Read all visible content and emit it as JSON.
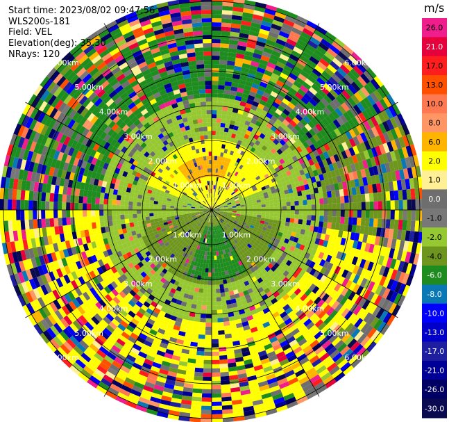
{
  "header": {
    "start_time": "Start time: 2023/08/02 09:47:56",
    "station": "WLS200s-181",
    "field": "Field: VEL",
    "elevation": "Elevation(deg): 35.30",
    "nrays": "NRays: 120"
  },
  "chart_data": {
    "type": "heatmap",
    "projection": "polar PPI",
    "field": "VEL",
    "units": "m/s",
    "n_rays": 120,
    "elevation_deg": 35.3,
    "range_rings_km": [
      1,
      2,
      3,
      4,
      5,
      6
    ],
    "range_ring_labels": [
      "1.00km",
      "2.00km",
      "3.00km",
      "4.00km",
      "5.00km",
      "6.00km"
    ],
    "max_range_km": 6.2,
    "colorbar": {
      "title": "m/s",
      "ticks": [
        "26.0",
        "21.0",
        "17.0",
        "13.0",
        "10.0",
        "8.0",
        "6.0",
        "2.0",
        "1.0",
        "0.0",
        "-1.0",
        "-2.0",
        "-4.0",
        "-6.0",
        "-8.0",
        "-10.0",
        "-13.0",
        "-17.0",
        "-21.0",
        "-26.0",
        "-30.0"
      ],
      "colors": [
        "#f01e8c",
        "#e6003c",
        "#ff1e1e",
        "#ff5000",
        "#ff7850",
        "#ff9664",
        "#ffb400",
        "#ffff00",
        "#fff096",
        "#6e6e6e",
        "#787878",
        "#96c832",
        "#6e961e",
        "#1e8c1e",
        "#0a78b4",
        "#0000ff",
        "#0000c8",
        "#1e1ea0",
        "#000096",
        "#000064",
        "#0a0a50"
      ]
    },
    "regions": [
      {
        "range_km": [
          0,
          1.0
        ],
        "azimuth_deg": [
          300,
          60
        ],
        "dominant_value": 2.0
      },
      {
        "range_km": [
          1.0,
          2.4
        ],
        "azimuth_deg": [
          290,
          70
        ],
        "dominant_value": 2.0
      },
      {
        "range_km": [
          0.9,
          1.6
        ],
        "azimuth_deg": [
          320,
          20
        ],
        "dominant_value": 6.0
      },
      {
        "range_km": [
          0,
          2.2
        ],
        "azimuth_deg": [
          100,
          260
        ],
        "dominant_value": -4.0
      },
      {
        "range_km": [
          0.5,
          2.0
        ],
        "azimuth_deg": [
          150,
          200
        ],
        "dominant_value": -6.0
      },
      {
        "range_km": [
          2.0,
          3.3
        ],
        "azimuth_deg": [
          250,
          110
        ],
        "dominant_value": -2.0
      },
      {
        "range_km": [
          3.3,
          6.2
        ],
        "azimuth_deg": [
          270,
          60
        ],
        "dominant_value": -6.0
      },
      {
        "range_km": [
          3.6,
          6.2
        ],
        "azimuth_deg": [
          100,
          260
        ],
        "dominant_value": 2.0
      }
    ]
  }
}
